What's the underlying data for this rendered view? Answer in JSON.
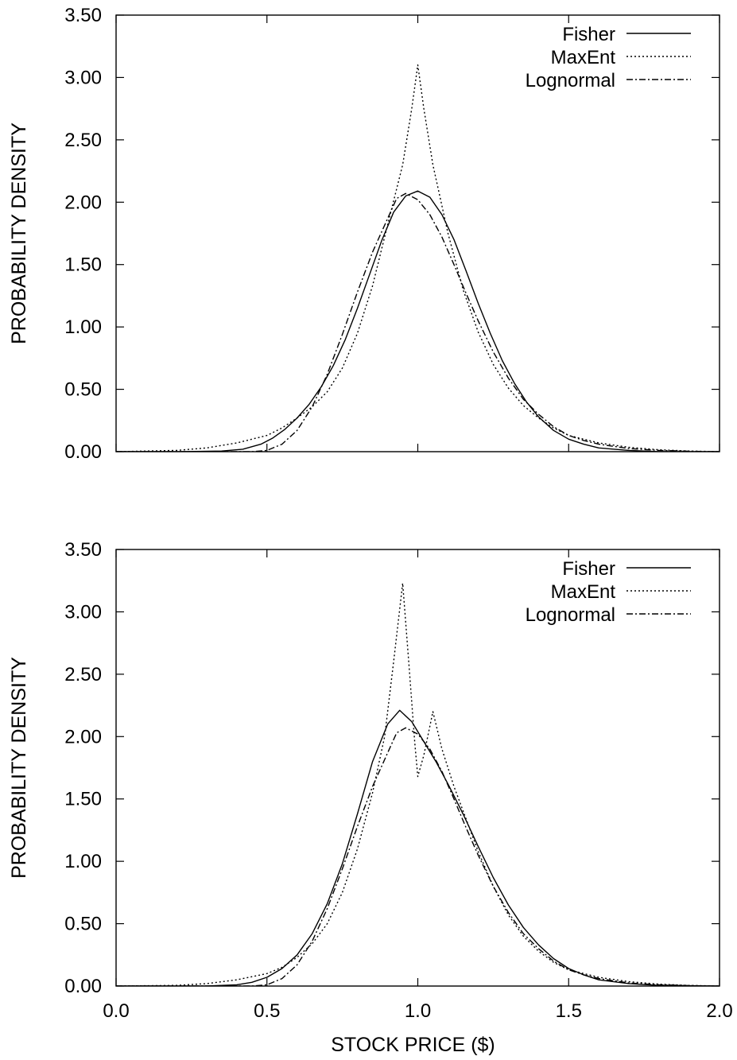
{
  "chart_data": [
    {
      "type": "line",
      "xlabel": "",
      "ylabel": "PROBABILITY DENSITY",
      "xlim": [
        0.0,
        2.0
      ],
      "ylim": [
        0.0,
        3.5
      ],
      "x_ticks": [
        "0.0",
        "0.5",
        "1.0",
        "1.5",
        "2.0"
      ],
      "show_x_tick_labels": false,
      "y_ticks": [
        "0.00",
        "0.50",
        "1.00",
        "1.50",
        "2.00",
        "2.50",
        "3.00",
        "3.50"
      ],
      "grid": false,
      "legend_position": "top-right",
      "series": [
        {
          "name": "Fisher",
          "style": "solid",
          "points": [
            [
              0.0,
              0.0
            ],
            [
              0.2,
              0.0
            ],
            [
              0.35,
              0.005
            ],
            [
              0.42,
              0.02
            ],
            [
              0.48,
              0.06
            ],
            [
              0.52,
              0.11
            ],
            [
              0.56,
              0.18
            ],
            [
              0.6,
              0.27
            ],
            [
              0.64,
              0.38
            ],
            [
              0.68,
              0.52
            ],
            [
              0.72,
              0.69
            ],
            [
              0.76,
              0.9
            ],
            [
              0.8,
              1.15
            ],
            [
              0.84,
              1.42
            ],
            [
              0.88,
              1.69
            ],
            [
              0.92,
              1.92
            ],
            [
              0.96,
              2.05
            ],
            [
              1.0,
              2.09
            ],
            [
              1.04,
              2.04
            ],
            [
              1.08,
              1.9
            ],
            [
              1.12,
              1.7
            ],
            [
              1.16,
              1.45
            ],
            [
              1.2,
              1.19
            ],
            [
              1.24,
              0.95
            ],
            [
              1.28,
              0.73
            ],
            [
              1.32,
              0.55
            ],
            [
              1.36,
              0.4
            ],
            [
              1.4,
              0.28
            ],
            [
              1.45,
              0.17
            ],
            [
              1.5,
              0.1
            ],
            [
              1.55,
              0.06
            ],
            [
              1.6,
              0.03
            ],
            [
              1.7,
              0.01
            ],
            [
              1.8,
              0.0
            ],
            [
              2.0,
              0.0
            ]
          ]
        },
        {
          "name": "MaxEnt",
          "style": "dotted",
          "points": [
            [
              0.0,
              0.0
            ],
            [
              0.2,
              0.01
            ],
            [
              0.3,
              0.03
            ],
            [
              0.4,
              0.07
            ],
            [
              0.5,
              0.13
            ],
            [
              0.55,
              0.19
            ],
            [
              0.6,
              0.27
            ],
            [
              0.65,
              0.36
            ],
            [
              0.7,
              0.48
            ],
            [
              0.75,
              0.67
            ],
            [
              0.8,
              0.95
            ],
            [
              0.85,
              1.33
            ],
            [
              0.9,
              1.82
            ],
            [
              0.95,
              2.3
            ],
            [
              0.98,
              2.75
            ],
            [
              1.0,
              3.1
            ],
            [
              1.02,
              2.75
            ],
            [
              1.05,
              2.3
            ],
            [
              1.1,
              1.75
            ],
            [
              1.15,
              1.3
            ],
            [
              1.2,
              0.96
            ],
            [
              1.25,
              0.7
            ],
            [
              1.3,
              0.51
            ],
            [
              1.35,
              0.37
            ],
            [
              1.4,
              0.27
            ],
            [
              1.45,
              0.19
            ],
            [
              1.5,
              0.13
            ],
            [
              1.6,
              0.07
            ],
            [
              1.7,
              0.035
            ],
            [
              1.8,
              0.015
            ],
            [
              1.9,
              0.005
            ],
            [
              2.0,
              0.0
            ]
          ]
        },
        {
          "name": "Lognormal",
          "style": "dash-dot",
          "points": [
            [
              0.0,
              0.0
            ],
            [
              0.45,
              0.0
            ],
            [
              0.5,
              0.01
            ],
            [
              0.55,
              0.06
            ],
            [
              0.6,
              0.17
            ],
            [
              0.65,
              0.36
            ],
            [
              0.7,
              0.62
            ],
            [
              0.75,
              0.94
            ],
            [
              0.8,
              1.28
            ],
            [
              0.85,
              1.6
            ],
            [
              0.9,
              1.87
            ],
            [
              0.93,
              2.03
            ],
            [
              0.96,
              2.07
            ],
            [
              1.0,
              2.02
            ],
            [
              1.04,
              1.9
            ],
            [
              1.08,
              1.72
            ],
            [
              1.12,
              1.5
            ],
            [
              1.16,
              1.27
            ],
            [
              1.2,
              1.05
            ],
            [
              1.25,
              0.8
            ],
            [
              1.3,
              0.59
            ],
            [
              1.35,
              0.42
            ],
            [
              1.4,
              0.3
            ],
            [
              1.45,
              0.2
            ],
            [
              1.5,
              0.13
            ],
            [
              1.55,
              0.09
            ],
            [
              1.6,
              0.06
            ],
            [
              1.7,
              0.025
            ],
            [
              1.8,
              0.01
            ],
            [
              1.9,
              0.004
            ],
            [
              2.0,
              0.0
            ]
          ]
        }
      ]
    },
    {
      "type": "line",
      "xlabel": "STOCK PRICE ($)",
      "ylabel": "PROBABILITY DENSITY",
      "xlim": [
        0.0,
        2.0
      ],
      "ylim": [
        0.0,
        3.5
      ],
      "x_ticks": [
        "0.0",
        "0.5",
        "1.0",
        "1.5",
        "2.0"
      ],
      "show_x_tick_labels": true,
      "y_ticks": [
        "0.00",
        "0.50",
        "1.00",
        "1.50",
        "2.00",
        "2.50",
        "3.00",
        "3.50"
      ],
      "grid": false,
      "legend_position": "top-right",
      "series": [
        {
          "name": "Fisher",
          "style": "solid",
          "points": [
            [
              0.0,
              0.0
            ],
            [
              0.3,
              0.0
            ],
            [
              0.4,
              0.01
            ],
            [
              0.45,
              0.03
            ],
            [
              0.5,
              0.07
            ],
            [
              0.55,
              0.14
            ],
            [
              0.6,
              0.25
            ],
            [
              0.65,
              0.42
            ],
            [
              0.7,
              0.66
            ],
            [
              0.75,
              0.98
            ],
            [
              0.8,
              1.38
            ],
            [
              0.85,
              1.8
            ],
            [
              0.9,
              2.1
            ],
            [
              0.94,
              2.21
            ],
            [
              0.98,
              2.12
            ],
            [
              1.02,
              1.96
            ],
            [
              1.06,
              1.8
            ],
            [
              1.1,
              1.62
            ],
            [
              1.15,
              1.38
            ],
            [
              1.2,
              1.12
            ],
            [
              1.25,
              0.87
            ],
            [
              1.3,
              0.65
            ],
            [
              1.35,
              0.47
            ],
            [
              1.4,
              0.33
            ],
            [
              1.45,
              0.22
            ],
            [
              1.5,
              0.14
            ],
            [
              1.55,
              0.09
            ],
            [
              1.6,
              0.05
            ],
            [
              1.7,
              0.02
            ],
            [
              1.8,
              0.005
            ],
            [
              2.0,
              0.0
            ]
          ]
        },
        {
          "name": "MaxEnt",
          "style": "dotted",
          "points": [
            [
              0.0,
              0.0
            ],
            [
              0.2,
              0.005
            ],
            [
              0.3,
              0.02
            ],
            [
              0.4,
              0.05
            ],
            [
              0.5,
              0.1
            ],
            [
              0.55,
              0.15
            ],
            [
              0.6,
              0.23
            ],
            [
              0.65,
              0.34
            ],
            [
              0.7,
              0.5
            ],
            [
              0.75,
              0.75
            ],
            [
              0.8,
              1.1
            ],
            [
              0.85,
              1.55
            ],
            [
              0.89,
              2.0
            ],
            [
              0.92,
              2.6
            ],
            [
              0.95,
              3.23
            ],
            [
              0.97,
              2.6
            ],
            [
              0.99,
              1.95
            ],
            [
              1.0,
              1.68
            ],
            [
              1.02,
              1.85
            ],
            [
              1.05,
              2.2
            ],
            [
              1.08,
              1.9
            ],
            [
              1.12,
              1.6
            ],
            [
              1.16,
              1.34
            ],
            [
              1.2,
              1.08
            ],
            [
              1.25,
              0.8
            ],
            [
              1.3,
              0.57
            ],
            [
              1.35,
              0.4
            ],
            [
              1.4,
              0.28
            ],
            [
              1.45,
              0.19
            ],
            [
              1.5,
              0.13
            ],
            [
              1.6,
              0.07
            ],
            [
              1.7,
              0.035
            ],
            [
              1.8,
              0.015
            ],
            [
              1.9,
              0.005
            ],
            [
              2.0,
              0.0
            ]
          ]
        },
        {
          "name": "Lognormal",
          "style": "dash-dot",
          "points": [
            [
              0.0,
              0.0
            ],
            [
              0.45,
              0.0
            ],
            [
              0.5,
              0.01
            ],
            [
              0.55,
              0.06
            ],
            [
              0.6,
              0.17
            ],
            [
              0.65,
              0.36
            ],
            [
              0.7,
              0.62
            ],
            [
              0.75,
              0.94
            ],
            [
              0.8,
              1.28
            ],
            [
              0.85,
              1.6
            ],
            [
              0.9,
              1.87
            ],
            [
              0.93,
              2.03
            ],
            [
              0.96,
              2.07
            ],
            [
              1.0,
              2.02
            ],
            [
              1.04,
              1.9
            ],
            [
              1.08,
              1.72
            ],
            [
              1.12,
              1.5
            ],
            [
              1.16,
              1.27
            ],
            [
              1.2,
              1.05
            ],
            [
              1.25,
              0.8
            ],
            [
              1.3,
              0.59
            ],
            [
              1.35,
              0.42
            ],
            [
              1.4,
              0.3
            ],
            [
              1.45,
              0.2
            ],
            [
              1.5,
              0.13
            ],
            [
              1.55,
              0.09
            ],
            [
              1.6,
              0.06
            ],
            [
              1.7,
              0.025
            ],
            [
              1.8,
              0.01
            ],
            [
              1.9,
              0.004
            ],
            [
              2.0,
              0.0
            ]
          ]
        }
      ]
    }
  ]
}
